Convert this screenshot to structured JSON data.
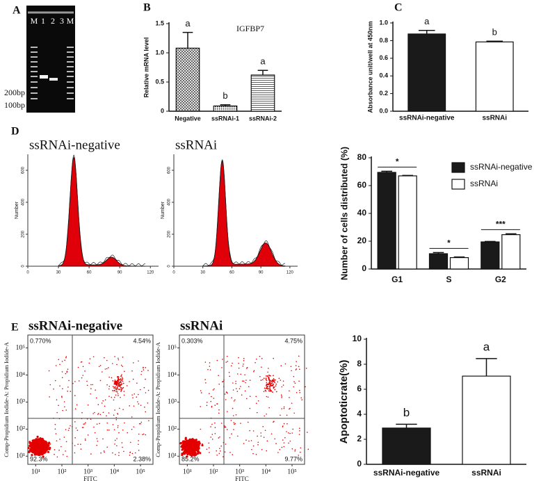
{
  "panel_labels": [
    "A",
    "B",
    "C",
    "D",
    "E"
  ],
  "gel": {
    "lanes": [
      "M",
      "1",
      "2",
      "3",
      "M"
    ],
    "markers": [
      "200bp",
      "100bp"
    ]
  },
  "chart_data": [
    {
      "type": "bar",
      "title": "IGFBP7",
      "ylabel": "Relative mRNA level",
      "fill_style": "hatched",
      "categories": [
        "Negative",
        "ssRNAi-1",
        "ssRNAi-2"
      ],
      "values": [
        1.08,
        0.09,
        0.62
      ],
      "errors": [
        0.27,
        0.02,
        0.08
      ],
      "annotations": [
        "a",
        "b",
        "a"
      ],
      "ylim": [
        0,
        1.5
      ],
      "yticks": [
        0,
        {
          "value": 0.5,
          "label": "0.5"
        },
        {
          "value": 1,
          "label": "1.0"
        },
        1.5
      ]
    },
    {
      "type": "bar",
      "ylabel": "Absorbance unit/well at 450nm",
      "fill_style": "solid",
      "categories": [
        "ssRNAi-negative",
        "ssRNAi"
      ],
      "values": [
        0.875,
        0.785
      ],
      "errors": [
        0.04,
        0.008
      ],
      "colors": [
        "#1a1a1a",
        "#ffffff"
      ],
      "annotations": [
        "a",
        "b"
      ],
      "ylim": [
        0,
        1
      ],
      "yticks": [
        {
          "value": 0,
          "label": "0.0"
        },
        0.2,
        0.4,
        0.6,
        0.8,
        {
          "value": 1,
          "label": "1.0"
        }
      ]
    },
    {
      "type": "flow-histogram",
      "title": "ssRNAi-negative",
      "ylabel": "Number",
      "xlim": [
        0,
        128
      ],
      "xticks": [
        0,
        30,
        60,
        90,
        120
      ],
      "ylim": [
        0,
        700
      ],
      "yticks": [
        0,
        200,
        400,
        600
      ]
    },
    {
      "type": "flow-histogram",
      "title": "ssRNAi",
      "ylabel": "Number",
      "xlim": [
        0,
        128
      ],
      "xticks": [
        0,
        30,
        60,
        90,
        120
      ],
      "ylim": [
        0,
        700
      ],
      "yticks": [
        0,
        200,
        400,
        600
      ]
    },
    {
      "type": "bar",
      "ylabel": "Number of cells distributed (%)",
      "fill_style": "solid",
      "categories": [
        "G1",
        "S",
        "G2"
      ],
      "series": [
        {
          "name": "ssRNAi-negative",
          "color": "#1a1a1a",
          "values": [
            69.5,
            11,
            19.5
          ],
          "errors": [
            0.8,
            0.8,
            0.3
          ]
        },
        {
          "name": "ssRNAi",
          "color": "#ffffff",
          "values": [
            67,
            8.2,
            24.7
          ],
          "errors": [
            0.3,
            0.4,
            0.6
          ]
        }
      ],
      "significance": [
        "*",
        "*",
        "***"
      ],
      "legend": "top-right",
      "ylim": [
        0,
        80
      ],
      "yticks": [
        0,
        20,
        40,
        60,
        80
      ]
    },
    {
      "type": "flow-scatter",
      "title": "ssRNAi-negative",
      "xlabel": "FITC",
      "ylabel": "Comp-Propidium Iodide-A: Propidium Iodide-A",
      "quadrant_labels": [
        "0.770%",
        "4.54%",
        "92.3%",
        "2.38%"
      ],
      "log": true,
      "gate_x": 250,
      "gate_y": 250,
      "xlim": [
        5,
        300000
      ],
      "ylim": [
        5,
        300000
      ],
      "xticks": [
        {
          "value": 10,
          "label": "10¹"
        },
        {
          "value": 100,
          "label": "10²"
        },
        {
          "value": 1000,
          "label": "10³"
        },
        {
          "value": 10000,
          "label": "10⁴"
        },
        {
          "value": 100000,
          "label": "10⁵"
        }
      ],
      "yticks": [
        {
          "value": 10,
          "label": "10¹"
        },
        {
          "value": 100,
          "label": "10²"
        },
        {
          "value": 1000,
          "label": "10³"
        },
        {
          "value": 10000,
          "label": "10⁴"
        },
        {
          "value": 100000,
          "label": "10⁵"
        }
      ]
    },
    {
      "type": "flow-scatter",
      "title": "ssRNAi",
      "xlabel": "FITC",
      "ylabel": "Comp-Propidium Iodide-A: Propidium Iodide-A",
      "quadrant_labels": [
        "0.303%",
        "4.75%",
        "85.2%",
        "9.77%"
      ],
      "log": true,
      "gate_x": 250,
      "gate_y": 250,
      "xlim": [
        5,
        300000
      ],
      "ylim": [
        5,
        300000
      ],
      "xticks": [
        {
          "value": 10,
          "label": "10¹"
        },
        {
          "value": 100,
          "label": "10²"
        },
        {
          "value": 1000,
          "label": "10³"
        },
        {
          "value": 10000,
          "label": "10⁴"
        },
        {
          "value": 100000,
          "label": "10⁵"
        }
      ],
      "yticks": [
        {
          "value": 10,
          "label": "10¹"
        },
        {
          "value": 100,
          "label": "10²"
        },
        {
          "value": 1000,
          "label": "10³"
        },
        {
          "value": 10000,
          "label": "10⁴"
        },
        {
          "value": 100000,
          "label": "10⁵"
        }
      ]
    },
    {
      "type": "bar",
      "ylabel": "Apoptoticrate(%)",
      "fill_style": "solid",
      "categories": [
        "ssRNAi-negative",
        "ssRNAi"
      ],
      "values": [
        2.9,
        7.05
      ],
      "errors": [
        0.3,
        1.4
      ],
      "colors": [
        "#1a1a1a",
        "#ffffff"
      ],
      "annotations": [
        "b",
        "a"
      ],
      "ylim": [
        0,
        10
      ],
      "yticks": [
        0,
        2,
        4,
        6,
        8,
        10
      ]
    }
  ]
}
